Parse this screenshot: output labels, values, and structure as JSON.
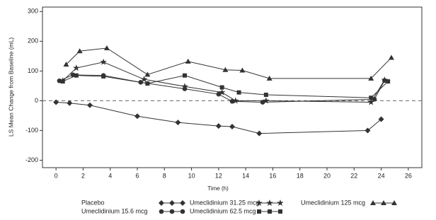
{
  "chart_data": {
    "type": "line",
    "x_label": "Time (h)",
    "y_label": "LS Mean Change from Baseline (mL)",
    "xlim": [
      -1,
      27
    ],
    "xticks": [
      0,
      2,
      4,
      6,
      8,
      10,
      12,
      14,
      16,
      18,
      20,
      22,
      24,
      26
    ],
    "ylim": [
      -225,
      315
    ],
    "yticks": [
      -200,
      -100,
      0,
      100,
      200,
      300
    ],
    "grid": false,
    "hline": 0,
    "series": [
      {
        "name": "Placebo",
        "color": "#333333",
        "marker": "diamond",
        "x": [
          0,
          1,
          2.5,
          6,
          9,
          12,
          13,
          15,
          23,
          24
        ],
        "values": [
          -5,
          -8,
          -15,
          -52,
          -73,
          -85,
          -87,
          -110,
          -100,
          -62
        ]
      },
      {
        "name": "Umeclidinium 15.6 mcg",
        "color": "#333333",
        "marker": "circle",
        "x": [
          0.25,
          1.25,
          3.5,
          6.25,
          9.5,
          12,
          13,
          15.25,
          23.5,
          24.25
        ],
        "values": [
          67,
          87,
          85,
          62,
          40,
          22,
          -2,
          -5,
          5,
          68
        ]
      },
      {
        "name": "Umeclidinium 31.25 mcg",
        "color": "#333333",
        "marker": "star",
        "x": [
          0.5,
          1.5,
          3.5,
          6.5,
          9.5,
          12.25,
          13.25,
          15.5,
          23.25,
          24.25
        ],
        "values": [
          67,
          110,
          130,
          72,
          48,
          28,
          0,
          0,
          -5,
          70
        ]
      },
      {
        "name": "Umeclidinium 62.5 mcg",
        "color": "#333333",
        "marker": "square",
        "x": [
          0.5,
          1.5,
          3.5,
          6.75,
          9.5,
          12.25,
          13.5,
          15.5,
          23.25,
          24.5
        ],
        "values": [
          65,
          85,
          82,
          58,
          85,
          45,
          28,
          20,
          10,
          65
        ]
      },
      {
        "name": "Umeclidinium 125 mcg",
        "color": "#333333",
        "marker": "triangle",
        "x": [
          0.75,
          1.75,
          3.75,
          6.75,
          9.75,
          12.5,
          13.75,
          15.75,
          23.25,
          24.75
        ],
        "values": [
          122,
          167,
          177,
          88,
          132,
          104,
          102,
          75,
          75,
          145
        ]
      }
    ]
  }
}
